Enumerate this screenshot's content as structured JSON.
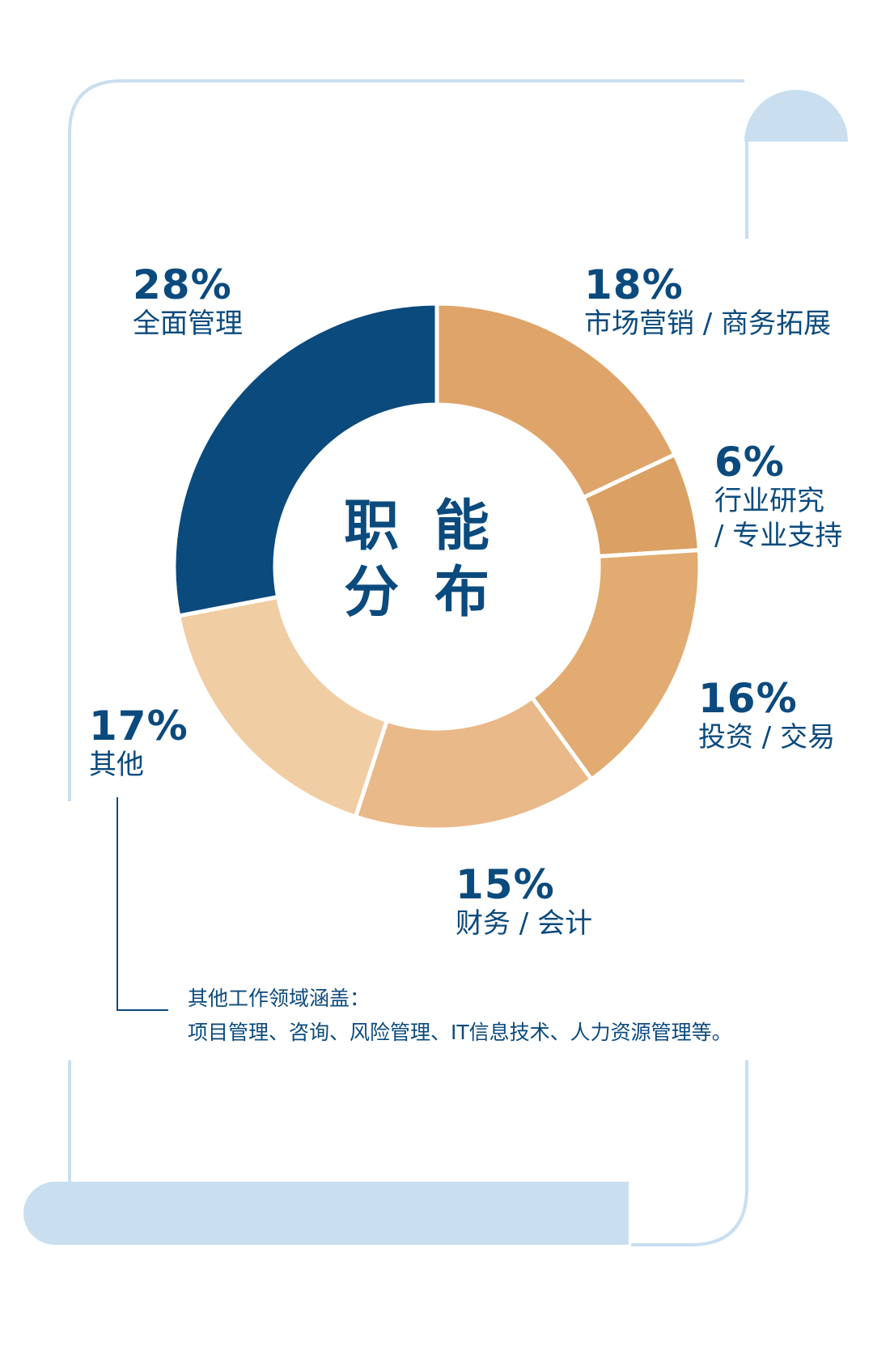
{
  "colors": {
    "navy": "#0b4a7d",
    "frame": "#c9dff0",
    "gold_dark": "#d99a5a",
    "gold_light": "#f6dcbd"
  },
  "chart_data": {
    "type": "pie",
    "title": "职能分布",
    "categories": [
      "全面管理",
      "市场营销/商务拓展",
      "行业研究/专业支持",
      "投资/交易",
      "财务/会计",
      "其他"
    ],
    "values": [
      28,
      18,
      6,
      16,
      15,
      17
    ],
    "percent_labels": [
      "28%",
      "18%",
      "6%",
      "16%",
      "15%",
      "17%"
    ],
    "slice_colors": [
      "#0b4a7d",
      "#dfa469",
      "#dba064",
      "#e2ab71",
      "#eab989",
      "#f1cda4"
    ]
  },
  "center_title": {
    "line1": "职 能",
    "line2": "分 布"
  },
  "labels": {
    "mgmt": {
      "pct": "28%",
      "text": "全面管理"
    },
    "market": {
      "pct": "18%",
      "text": "市场营销 / 商务拓展"
    },
    "research": {
      "pct": "6%",
      "line1": "行业研究",
      "line2": "/ 专业支持"
    },
    "invest": {
      "pct": "16%",
      "text": "投资 / 交易"
    },
    "finance": {
      "pct": "15%",
      "text": "财务 / 会计"
    },
    "other": {
      "pct": "17%",
      "text": "其他"
    }
  },
  "note": {
    "line1": "其他工作领域涵盖：",
    "line2": "项目管理、咨询、风险管理、IT信息技术、人力资源管理等。"
  }
}
